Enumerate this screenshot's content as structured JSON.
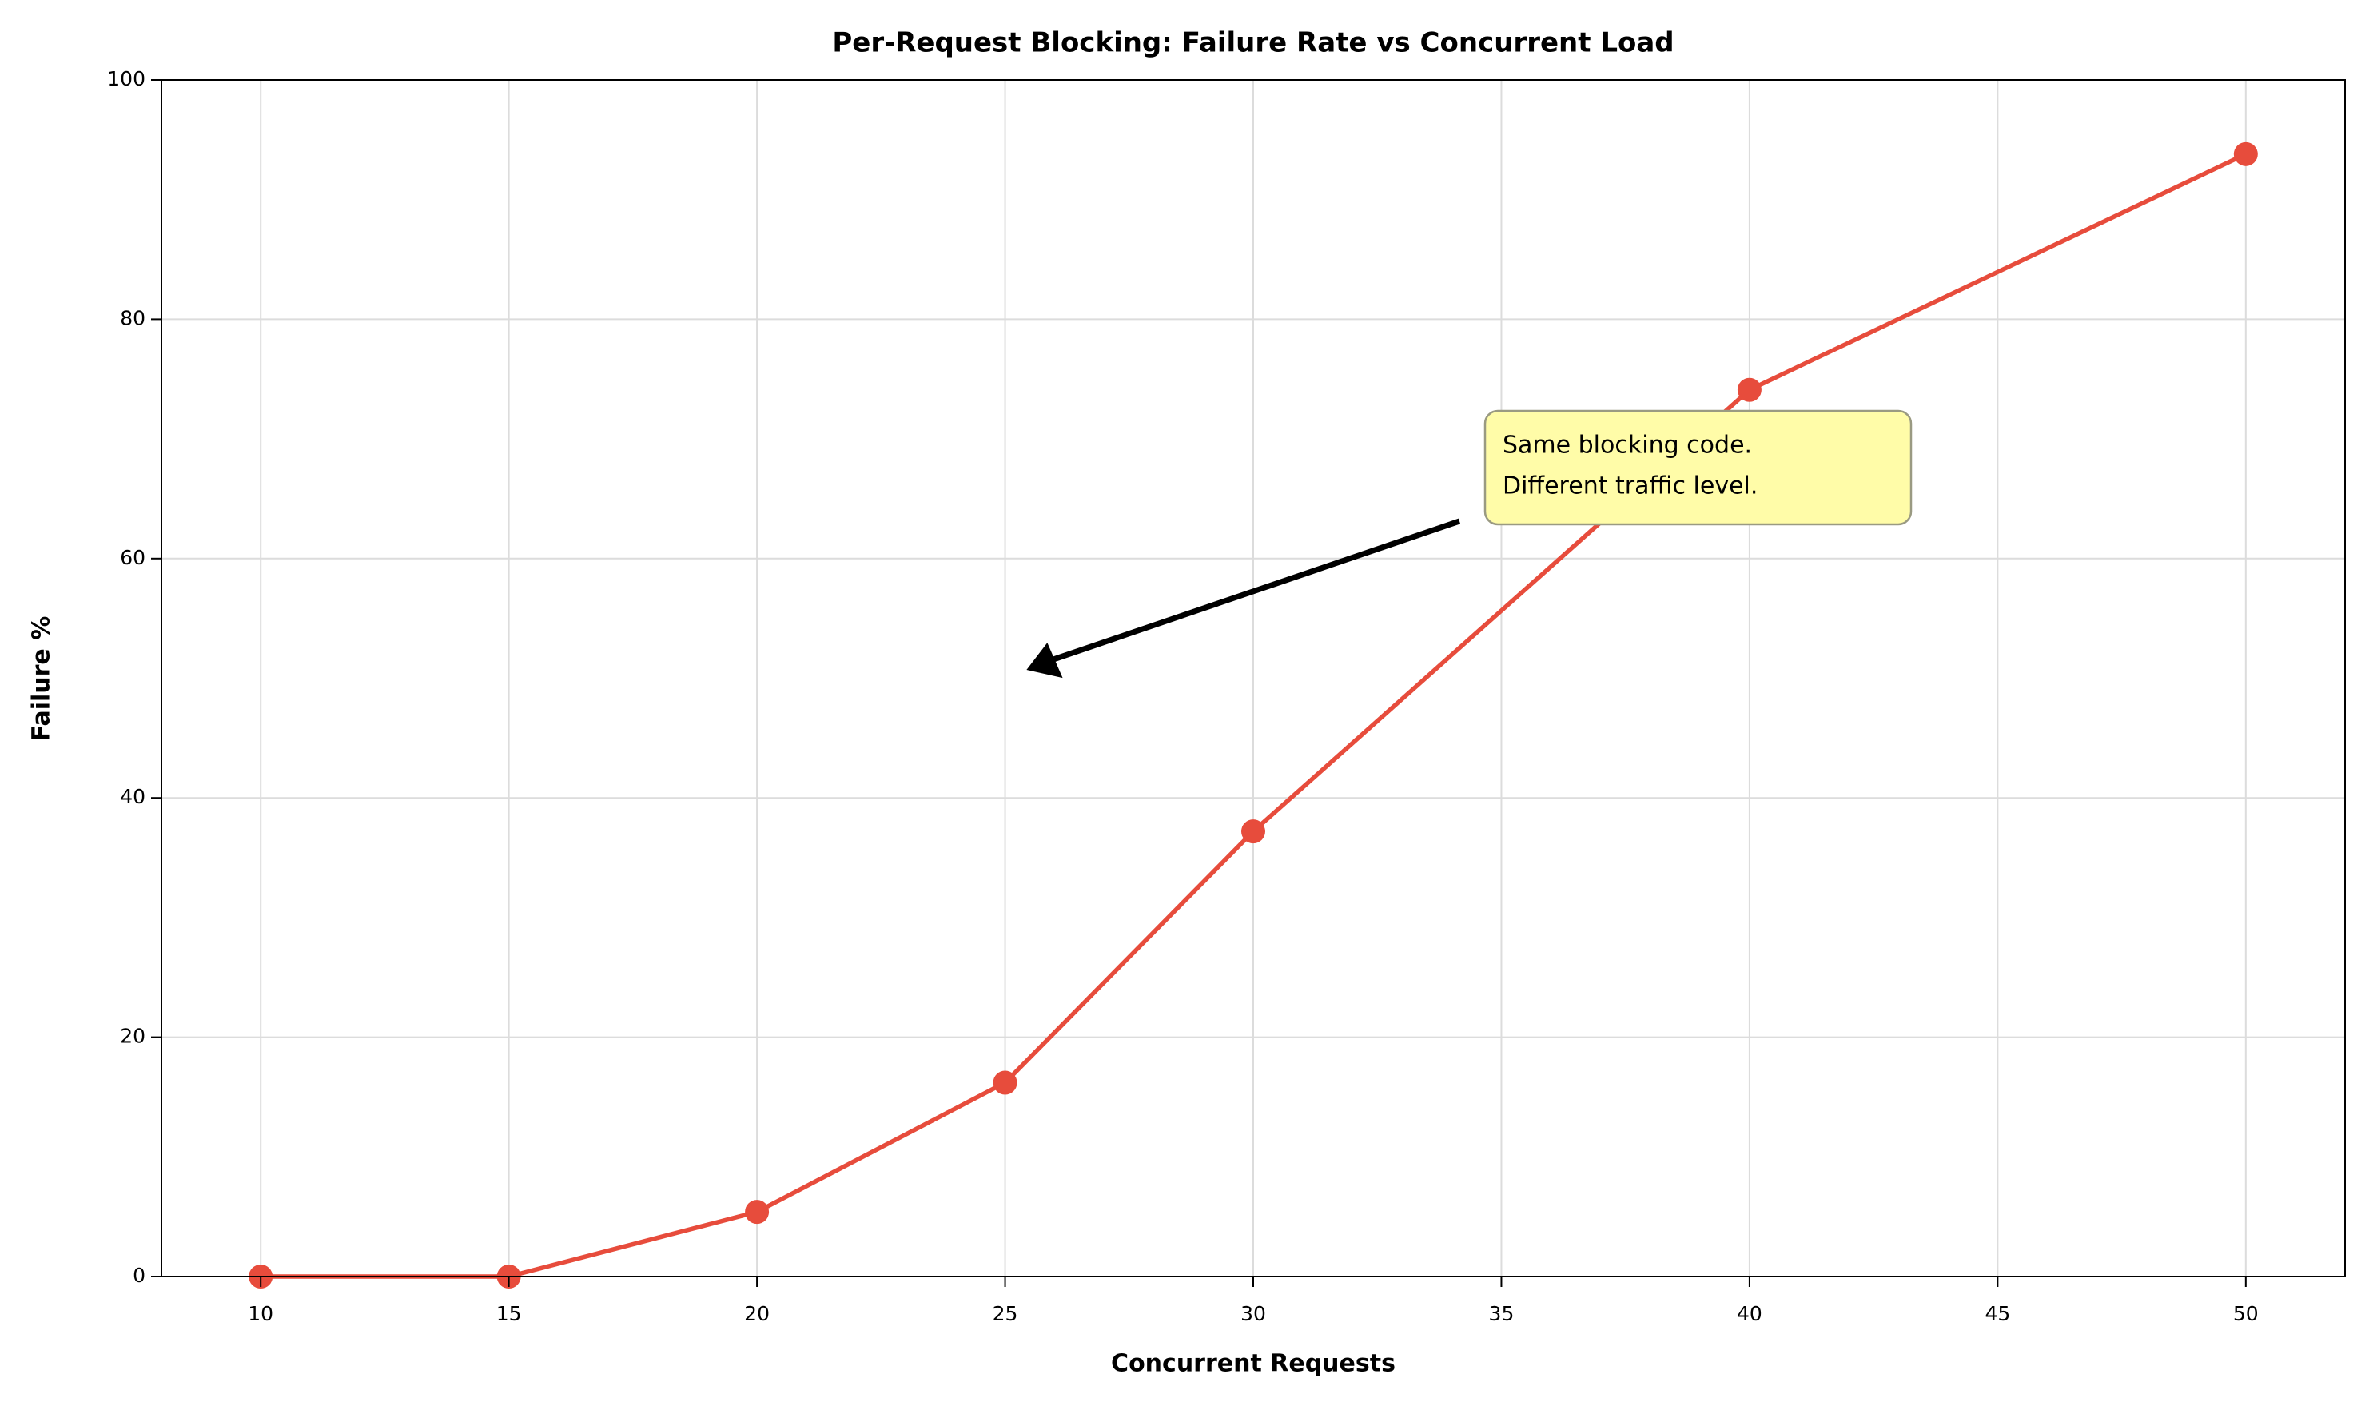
{
  "chart_data": {
    "type": "line",
    "title": "Per-Request Blocking: Failure Rate vs Concurrent Load",
    "x_label": "Concurrent Requests",
    "y_label": "Failure %",
    "x": [
      10,
      15,
      20,
      25,
      30,
      40,
      50
    ],
    "series": [
      {
        "color": "#e74c3c",
        "values": [
          0,
          0,
          5.4,
          16.2,
          37.2,
          74.1,
          93.8
        ]
      }
    ],
    "xlim": [
      8,
      52
    ],
    "xticks": [
      10,
      15,
      20,
      25,
      30,
      35,
      40,
      45,
      50
    ],
    "ylim": [
      0,
      100
    ],
    "yticks": [
      0,
      20,
      40,
      60,
      80,
      100
    ],
    "grid": true,
    "annotation": [
      "Same blocking code.",
      "Different traffic level."
    ]
  }
}
